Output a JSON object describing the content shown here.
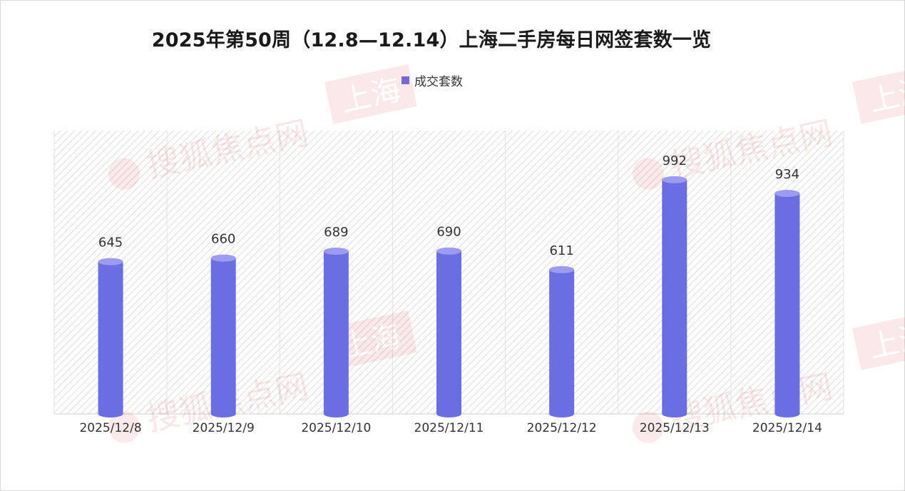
{
  "chart_data": {
    "type": "bar",
    "title": "2025年第50周（12.8—12.14）上海二手房每日网签套数一览",
    "categories": [
      "2025/12/8",
      "2025/12/9",
      "2025/12/10",
      "2025/12/11",
      "2025/12/12",
      "2025/12/13",
      "2025/12/14"
    ],
    "series": [
      {
        "name": "成交套数",
        "values": [
          645,
          660,
          689,
          690,
          611,
          992,
          934
        ]
      }
    ],
    "ylim": [
      0,
      1200
    ],
    "grid": false,
    "legend": "top-center",
    "colors": {
      "bar": "#6b6ee3",
      "bar_top": "#9b9cef",
      "hatch": "#cfcfcf"
    }
  },
  "watermark": {
    "brand": "搜狐焦点网",
    "region": "上海"
  }
}
